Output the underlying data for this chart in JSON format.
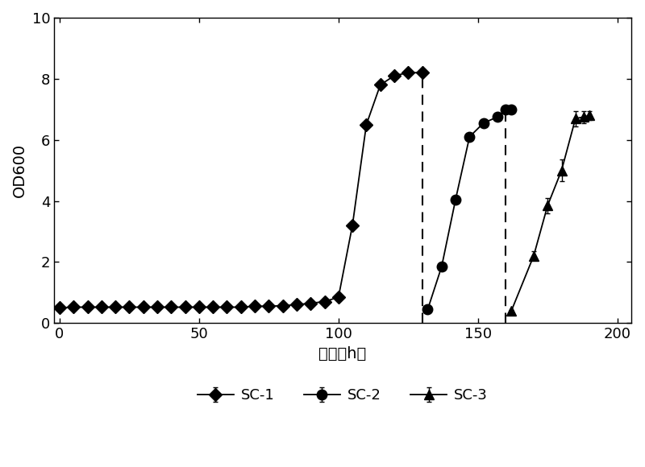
{
  "sc1_x": [
    0,
    5,
    10,
    15,
    20,
    25,
    30,
    35,
    40,
    45,
    50,
    55,
    60,
    65,
    70,
    75,
    80,
    85,
    90,
    95,
    100,
    105,
    110,
    115,
    120,
    125,
    130
  ],
  "sc1_y": [
    0.5,
    0.52,
    0.52,
    0.52,
    0.52,
    0.52,
    0.52,
    0.52,
    0.52,
    0.52,
    0.52,
    0.52,
    0.52,
    0.52,
    0.55,
    0.55,
    0.57,
    0.6,
    0.65,
    0.7,
    0.85,
    3.2,
    6.5,
    7.8,
    8.1,
    8.2,
    8.2
  ],
  "sc1_yerr": [
    0.0,
    0.0,
    0.0,
    0.0,
    0.0,
    0.0,
    0.0,
    0.0,
    0.0,
    0.0,
    0.0,
    0.0,
    0.0,
    0.0,
    0.0,
    0.0,
    0.0,
    0.0,
    0.0,
    0.0,
    0.0,
    0.0,
    0.0,
    0.0,
    0.08,
    0.07,
    0.07
  ],
  "sc2_x": [
    132,
    137,
    142,
    147,
    152,
    157,
    160,
    162
  ],
  "sc2_y": [
    0.45,
    1.85,
    4.05,
    6.1,
    6.55,
    6.75,
    7.0,
    7.0
  ],
  "sc2_yerr": [
    0.04,
    0.08,
    0.12,
    0.1,
    0.08,
    0.08,
    0.08,
    0.08
  ],
  "sc3_x": [
    162,
    170,
    175,
    180,
    185,
    188,
    190
  ],
  "sc3_y": [
    0.4,
    2.2,
    3.85,
    5.0,
    6.7,
    6.75,
    6.8
  ],
  "sc3_yerr": [
    0.04,
    0.15,
    0.25,
    0.35,
    0.25,
    0.2,
    0.15
  ],
  "dashed_line1_x": 130,
  "dashed_line1_ymax": 8.2,
  "dashed_line2_x": 160,
  "dashed_line2_ymax": 7.0,
  "xlabel": "时间（h）",
  "ylabel": "OD600",
  "xlim": [
    -2,
    205
  ],
  "ylim": [
    0,
    10
  ],
  "yticks": [
    0,
    2,
    4,
    6,
    8,
    10
  ],
  "xticks": [
    0,
    50,
    100,
    150,
    200
  ],
  "line_color": "#000000",
  "bg_color": "#ffffff",
  "legend_labels": [
    "SC-1",
    "SC-2",
    "SC-3"
  ]
}
